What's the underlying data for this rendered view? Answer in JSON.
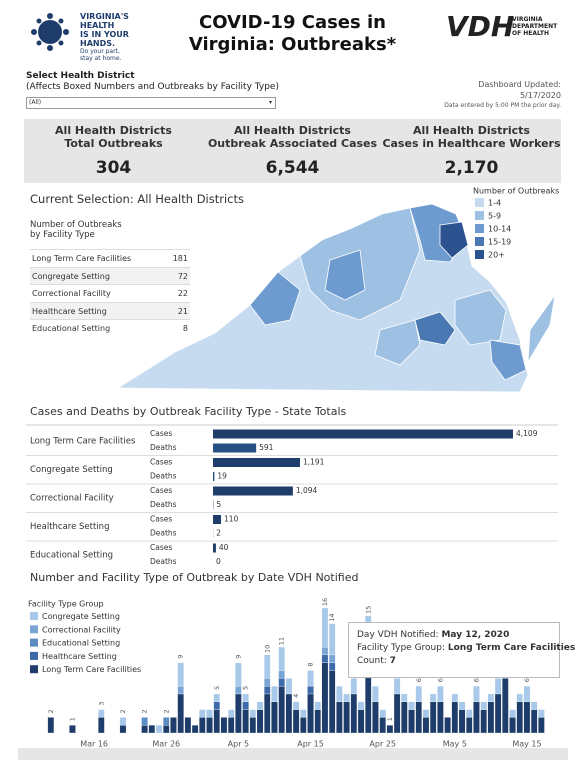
{
  "header": {
    "logo_lines": [
      "VIRGINIA'S",
      "HEALTH",
      "IS IN YOUR",
      "HANDS."
    ],
    "logo_tagline": [
      "Do your part,",
      "stay at home."
    ],
    "title": "COVID-19 Cases in Virginia: Outbreaks*",
    "vdh": "VDH",
    "vdh_name": [
      "VIRGINIA",
      "DEPARTMENT",
      "OF HEALTH"
    ]
  },
  "filter": {
    "label": "Select Health District",
    "hint": "(Affects Boxed Numbers and Outbreaks by Facility Type)",
    "selected": "(All)"
  },
  "updated": {
    "label": "Dashboard Updated:",
    "date": "5/17/2020",
    "note": "Data entered by 5:00 PM the prior day."
  },
  "kpis": [
    {
      "label": [
        "All Health Districts",
        "Total Outbreaks"
      ],
      "value": "304"
    },
    {
      "label": [
        "All Health Districts",
        "Outbreak Associated Cases"
      ],
      "value": "6,544"
    },
    {
      "label": [
        "All Health Districts",
        "Cases in Healthcare Workers"
      ],
      "value": "2,170"
    }
  ],
  "selection": "Current Selection: All Health Districts",
  "facility_table": {
    "title": [
      "Number of Outbreaks",
      "by Facility Type"
    ],
    "rows": [
      [
        "Long Term Care Facilities",
        "181"
      ],
      [
        "Congregate Setting",
        "72"
      ],
      [
        "Correctional Facility",
        "22"
      ],
      [
        "Healthcare Setting",
        "21"
      ],
      [
        "Educational Setting",
        "8"
      ]
    ]
  },
  "map_legend": {
    "title": "Number of Outbreaks",
    "bins": [
      {
        "label": "1-4",
        "color": "#c6dbef"
      },
      {
        "label": "5-9",
        "color": "#9ec1e3"
      },
      {
        "label": "10-14",
        "color": "#6d9bd0"
      },
      {
        "label": "15-19",
        "color": "#4a78b3"
      },
      {
        "label": "20+",
        "color": "#2c5290"
      }
    ]
  },
  "chart_data": [
    {
      "type": "hbar",
      "title": "Cases and Deaths by Outbreak Facility Type - State Totals",
      "categories": [
        "Long Term Care Facilities",
        "Congregate Setting",
        "Correctional Facility",
        "Healthcare Setting",
        "Educational Setting"
      ],
      "series": [
        {
          "name": "Cases",
          "color": "#1f3d6b",
          "values": [
            4109,
            1191,
            1094,
            110,
            40
          ],
          "value_labels": [
            "4,109",
            "1,191",
            "1,094",
            "110",
            "40"
          ]
        },
        {
          "name": "Deaths",
          "color": "#2a4f85",
          "values": [
            591,
            19,
            5,
            2,
            0
          ]
        }
      ]
    },
    {
      "type": "stacked_bar",
      "title": "Number and Facility Type of Outbreak by Date VDH Notified",
      "legend_title": "Facility Type Group",
      "categories": [
        null,
        null,
        null,
        null,
        null,
        null,
        null,
        "Mar 16",
        null,
        null,
        null,
        null,
        null,
        null,
        null,
        null,
        null,
        "Mar 26",
        null,
        null,
        null,
        null,
        null,
        null,
        null,
        null,
        null,
        "Apr 5",
        null,
        null,
        null,
        null,
        null,
        null,
        null,
        null,
        null,
        "Apr 15",
        null,
        null,
        null,
        null,
        null,
        null,
        null,
        null,
        null,
        "Apr 25",
        null,
        null,
        null,
        null,
        null,
        null,
        null,
        null,
        null,
        "May 5",
        null,
        null,
        null,
        null,
        null,
        null,
        null,
        null,
        null,
        "May 15",
        null,
        null
      ],
      "series": [
        {
          "name": "Congregate Setting",
          "color": "#a9c9ea",
          "values": [
            0,
            0,
            0,
            0,
            0,
            0,
            0,
            0,
            1,
            0,
            0,
            1,
            0,
            0,
            0,
            0,
            1,
            0,
            0,
            3,
            0,
            0,
            1,
            1,
            1,
            0,
            1,
            3,
            1,
            1,
            1,
            3,
            2,
            3,
            2,
            1,
            1,
            2,
            1,
            5,
            4,
            2,
            1,
            2,
            1,
            5,
            2,
            1,
            0,
            2,
            1,
            1,
            2,
            1,
            1,
            2,
            0,
            1,
            1,
            1,
            2,
            1,
            1,
            2,
            2,
            1,
            1,
            2,
            1,
            1
          ]
        },
        {
          "name": "Correctional Facility",
          "color": "#7aa6d6",
          "values": [
            0,
            0,
            0,
            0,
            0,
            0,
            0,
            0,
            0,
            0,
            0,
            0,
            0,
            0,
            0,
            0,
            0,
            0,
            0,
            1,
            0,
            0,
            0,
            0,
            0,
            0,
            0,
            1,
            0,
            0,
            0,
            1,
            0,
            1,
            0,
            0,
            0,
            0,
            0,
            1,
            1,
            0,
            0,
            0,
            0,
            1,
            0,
            0,
            0,
            0,
            0,
            0,
            0,
            0,
            0,
            0,
            0,
            0,
            0,
            0,
            0,
            0,
            0,
            0,
            0,
            0,
            0,
            0,
            0,
            0
          ]
        },
        {
          "name": "Educational Setting",
          "color": "#5b8cc4",
          "values": [
            0,
            0,
            0,
            0,
            0,
            0,
            0,
            0,
            0,
            0,
            0,
            0,
            0,
            0,
            1,
            0,
            0,
            1,
            0,
            0,
            0,
            0,
            0,
            0,
            0,
            0,
            0,
            0,
            0,
            0,
            0,
            0,
            0,
            0,
            0,
            0,
            0,
            0,
            0,
            0,
            0,
            0,
            0,
            0,
            0,
            0,
            0,
            0,
            0,
            0,
            0,
            0,
            0,
            0,
            0,
            0,
            0,
            0,
            0,
            0,
            0,
            0,
            0,
            0,
            0,
            0,
            0,
            0,
            0,
            0
          ]
        },
        {
          "name": "Healthcare Setting",
          "color": "#3d6aa8",
          "values": [
            0,
            0,
            0,
            0,
            0,
            0,
            0,
            0,
            0,
            0,
            0,
            0,
            0,
            0,
            0,
            0,
            0,
            0,
            0,
            0,
            0,
            0,
            0,
            0,
            1,
            0,
            0,
            0,
            1,
            0,
            0,
            1,
            0,
            1,
            0,
            0,
            0,
            1,
            0,
            1,
            1,
            0,
            0,
            0,
            0,
            1,
            0,
            0,
            0,
            0,
            0,
            0,
            0,
            0,
            0,
            0,
            0,
            0,
            0,
            0,
            0,
            0,
            0,
            0,
            0,
            0,
            0,
            0,
            0,
            0
          ]
        },
        {
          "name": "Long Term Care Facilities",
          "color": "#1f3d6b",
          "values": [
            0,
            2,
            0,
            0,
            1,
            0,
            0,
            0,
            2,
            0,
            0,
            1,
            0,
            0,
            1,
            1,
            0,
            1,
            2,
            5,
            2,
            1,
            2,
            2,
            3,
            2,
            2,
            5,
            3,
            2,
            3,
            5,
            4,
            6,
            5,
            3,
            2,
            5,
            3,
            9,
            8,
            4,
            4,
            5,
            3,
            8,
            4,
            2,
            1,
            5,
            4,
            3,
            4,
            2,
            4,
            4,
            2,
            4,
            3,
            2,
            4,
            3,
            4,
            5,
            7,
            2,
            4,
            4,
            3,
            2
          ]
        }
      ],
      "totals": [
        null,
        2,
        null,
        null,
        1,
        null,
        null,
        null,
        3,
        null,
        null,
        2,
        null,
        null,
        2,
        null,
        null,
        2,
        null,
        9,
        null,
        null,
        null,
        null,
        5,
        null,
        null,
        9,
        5,
        null,
        null,
        10,
        null,
        11,
        null,
        4,
        null,
        8,
        null,
        16,
        14,
        null,
        null,
        null,
        null,
        15,
        null,
        null,
        1,
        null,
        null,
        null,
        6,
        null,
        null,
        6,
        null,
        null,
        null,
        null,
        6,
        null,
        null,
        7,
        null,
        null,
        null,
        6,
        null,
        null
      ],
      "tooltip": [
        [
          "Day VDH Notified:",
          "May 12, 2020"
        ],
        [
          "Facility Type Group:",
          "Long Term Care Facilities"
        ],
        [
          "Count:",
          "7"
        ]
      ]
    }
  ]
}
